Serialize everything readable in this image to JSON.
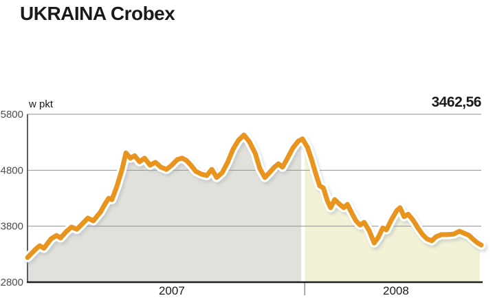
{
  "title": "UKRAINA Crobex",
  "unit_label": "w pkt",
  "last_value": "3462,56",
  "colors": {
    "line": "#E8941E",
    "line_halo": "#FFFFFF",
    "line_shadow": "#A7ADB8",
    "fill_2007": "#E1E1DB",
    "fill_2008": "#F2F2D6",
    "gridline": "#8F8F8F",
    "y_axis": "#4D4D4D",
    "x_axis": "#1F1F1F",
    "tick_text": "#4D4D4D",
    "text": "#1A1A1A"
  },
  "chart_data": {
    "type": "area",
    "title": "UKRAINA Crobex",
    "ylabel": "w pkt",
    "ylim": [
      2800,
      5800
    ],
    "y_ticks": [
      2800,
      3800,
      4800,
      5800
    ],
    "grid": true,
    "last_value": 3462.56,
    "last_value_label": "3462,56",
    "divider_pos": 0.611,
    "sections": [
      {
        "label": "2007",
        "fill": "#E1E1DB",
        "start": 0.0,
        "end": 0.603,
        "label_pos": 0.318
      },
      {
        "label": "2008",
        "fill": "#F2F2D6",
        "start": 0.611,
        "end": 0.997,
        "label_pos": 0.812
      }
    ],
    "series": [
      {
        "name": "Crobex",
        "color": "#E8941E",
        "points": [
          [
            0.0,
            3240
          ],
          [
            0.018,
            3390
          ],
          [
            0.027,
            3450
          ],
          [
            0.036,
            3405
          ],
          [
            0.052,
            3575
          ],
          [
            0.064,
            3635
          ],
          [
            0.073,
            3590
          ],
          [
            0.085,
            3700
          ],
          [
            0.097,
            3785
          ],
          [
            0.109,
            3745
          ],
          [
            0.121,
            3845
          ],
          [
            0.133,
            3945
          ],
          [
            0.145,
            3895
          ],
          [
            0.161,
            4055
          ],
          [
            0.171,
            4200
          ],
          [
            0.179,
            4300
          ],
          [
            0.186,
            4275
          ],
          [
            0.197,
            4510
          ],
          [
            0.208,
            4805
          ],
          [
            0.217,
            5110
          ],
          [
            0.227,
            5015
          ],
          [
            0.236,
            5060
          ],
          [
            0.247,
            4950
          ],
          [
            0.258,
            5015
          ],
          [
            0.27,
            4890
          ],
          [
            0.282,
            4940
          ],
          [
            0.294,
            4855
          ],
          [
            0.306,
            4815
          ],
          [
            0.318,
            4890
          ],
          [
            0.33,
            4990
          ],
          [
            0.341,
            5015
          ],
          [
            0.35,
            4975
          ],
          [
            0.359,
            4900
          ],
          [
            0.371,
            4780
          ],
          [
            0.383,
            4730
          ],
          [
            0.395,
            4705
          ],
          [
            0.406,
            4815
          ],
          [
            0.417,
            4670
          ],
          [
            0.429,
            4755
          ],
          [
            0.441,
            4940
          ],
          [
            0.453,
            5175
          ],
          [
            0.465,
            5335
          ],
          [
            0.477,
            5430
          ],
          [
            0.489,
            5310
          ],
          [
            0.502,
            5100
          ],
          [
            0.512,
            4830
          ],
          [
            0.523,
            4670
          ],
          [
            0.533,
            4755
          ],
          [
            0.544,
            4855
          ],
          [
            0.553,
            4915
          ],
          [
            0.562,
            4855
          ],
          [
            0.573,
            5015
          ],
          [
            0.585,
            5200
          ],
          [
            0.597,
            5320
          ],
          [
            0.606,
            5360
          ],
          [
            0.617,
            5210
          ],
          [
            0.626,
            4990
          ],
          [
            0.635,
            4745
          ],
          [
            0.644,
            4520
          ],
          [
            0.652,
            4485
          ],
          [
            0.661,
            4250
          ],
          [
            0.668,
            4130
          ],
          [
            0.677,
            4275
          ],
          [
            0.688,
            4190
          ],
          [
            0.697,
            4130
          ],
          [
            0.705,
            4190
          ],
          [
            0.715,
            4030
          ],
          [
            0.724,
            3895
          ],
          [
            0.733,
            3820
          ],
          [
            0.742,
            3870
          ],
          [
            0.753,
            3720
          ],
          [
            0.764,
            3500
          ],
          [
            0.773,
            3600
          ],
          [
            0.783,
            3770
          ],
          [
            0.791,
            3735
          ],
          [
            0.803,
            3930
          ],
          [
            0.814,
            4080
          ],
          [
            0.821,
            4130
          ],
          [
            0.83,
            3970
          ],
          [
            0.839,
            4015
          ],
          [
            0.85,
            3905
          ],
          [
            0.861,
            3760
          ],
          [
            0.871,
            3650
          ],
          [
            0.88,
            3575
          ],
          [
            0.891,
            3540
          ],
          [
            0.9,
            3610
          ],
          [
            0.912,
            3650
          ],
          [
            0.927,
            3650
          ],
          [
            0.939,
            3660
          ],
          [
            0.952,
            3710
          ],
          [
            0.962,
            3675
          ],
          [
            0.973,
            3635
          ],
          [
            0.983,
            3560
          ],
          [
            0.992,
            3500
          ],
          [
            1.0,
            3462.56
          ]
        ]
      }
    ]
  }
}
